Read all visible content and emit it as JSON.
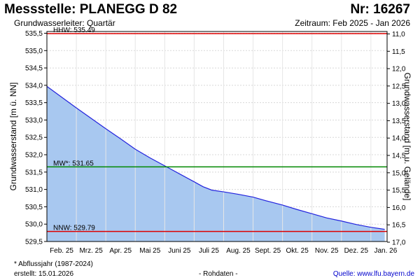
{
  "header": {
    "station": "Messstelle: PLANEGG D 82",
    "number": "Nr: 16267",
    "aquifer": "Grundwasserleiter: Quartär",
    "period": "Zeitraum: Feb 2025 - Jan 2026"
  },
  "footer": {
    "note": "* Abflussjahr (1987-2024)",
    "created": "erstellt:  15.01.2026",
    "raw": "- Rohdaten -",
    "source": "Quelle: www.lfu.bayern.de"
  },
  "colors": {
    "area": "#a8c8f0",
    "line": "#2222dd",
    "hhw": "#dd0000",
    "nnw": "#dd0000",
    "mw": "#008800",
    "grid": "#d8d8d8",
    "source_link": "#0000cc"
  },
  "chart_data": {
    "type": "area",
    "title": "Messstelle: PLANEGG D 82",
    "ylabel": "Grundwasserstand [m ü. NN]",
    "ylabel_right": "Grundwasserstand [m u. Gelände]",
    "ylim": [
      529.5,
      535.55
    ],
    "ylim_right": [
      16.98,
      10.93
    ],
    "yticks": [
      "529,5",
      "530,0",
      "530,5",
      "531,0",
      "531,5",
      "532,0",
      "532,5",
      "533,0",
      "533,5",
      "534,0",
      "534,5",
      "535,0",
      "535,5"
    ],
    "yticks_right": [
      "17,0",
      "16,5",
      "16,0",
      "15,5",
      "15,0",
      "14,5",
      "14,0",
      "13,5",
      "13,0",
      "12,5",
      "12,0",
      "11,5",
      "11,0"
    ],
    "xlim": [
      0,
      11.55
    ],
    "x_categories": [
      "Feb. 25",
      "Mrz. 25",
      "Apr. 25",
      "Mai 25",
      "Juni 25",
      "Juli 25",
      "Aug. 25",
      "Sept. 25",
      "Okt. 25",
      "Nov. 25",
      "Dez. 25",
      "Jan. 26"
    ],
    "series": [
      {
        "x": [
          0,
          0.5,
          1,
          1.5,
          2,
          2.5,
          3,
          3.5,
          4,
          4.5,
          5,
          5.3,
          5.6,
          6,
          6.5,
          7,
          7.5,
          8,
          8.5,
          9,
          9.5,
          10,
          10.5,
          11,
          11.47
        ],
        "y": [
          533.97,
          533.66,
          533.35,
          533.05,
          532.75,
          532.46,
          532.16,
          531.91,
          531.68,
          531.45,
          531.22,
          531.08,
          530.98,
          530.93,
          530.86,
          530.78,
          530.66,
          530.55,
          530.42,
          530.3,
          530.18,
          530.09,
          529.99,
          529.91,
          529.85
        ]
      }
    ],
    "reference_lines": [
      {
        "label": "HHW: 535.49",
        "value": 535.49,
        "color": "#dd0000"
      },
      {
        "label": "MW*: 531.65",
        "value": 531.65,
        "color": "#008800"
      },
      {
        "label": "NNW: 529.79",
        "value": 529.79,
        "color": "#dd0000"
      }
    ],
    "grid": true,
    "legend": "none"
  }
}
